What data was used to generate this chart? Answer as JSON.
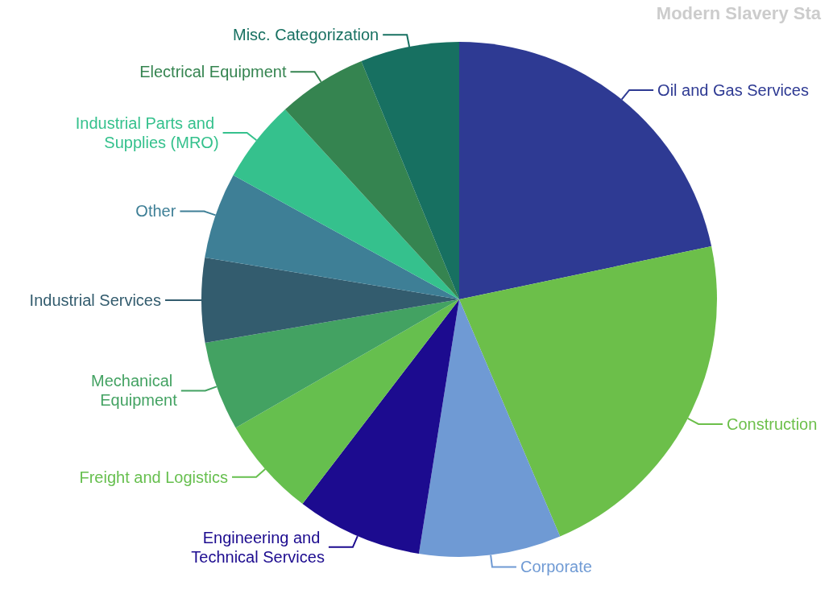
{
  "chart_data": {
    "type": "pie",
    "title": "Modern Slavery Sta",
    "categories": [
      "Oil and Gas Services",
      "Construction",
      "Corporate",
      "Engineering and Technical Services",
      "Freight and Logistics",
      "Mechanical Equipment",
      "Industrial Services",
      "Other",
      "Industrial Parts and Supplies (MRO)",
      "Electrical Equipment",
      "Misc. Categorization"
    ],
    "values": [
      21.7,
      21.9,
      8.9,
      7.9,
      6.3,
      5.6,
      5.3,
      5.4,
      5.2,
      5.6,
      6.2
    ],
    "colors": [
      "#2e3a93",
      "#6cbf4a",
      "#6f9ad4",
      "#1c0b8f",
      "#66bf4e",
      "#43a262",
      "#335c6e",
      "#3e7f96",
      "#35c18d",
      "#358450",
      "#177061"
    ],
    "legend": false
  }
}
